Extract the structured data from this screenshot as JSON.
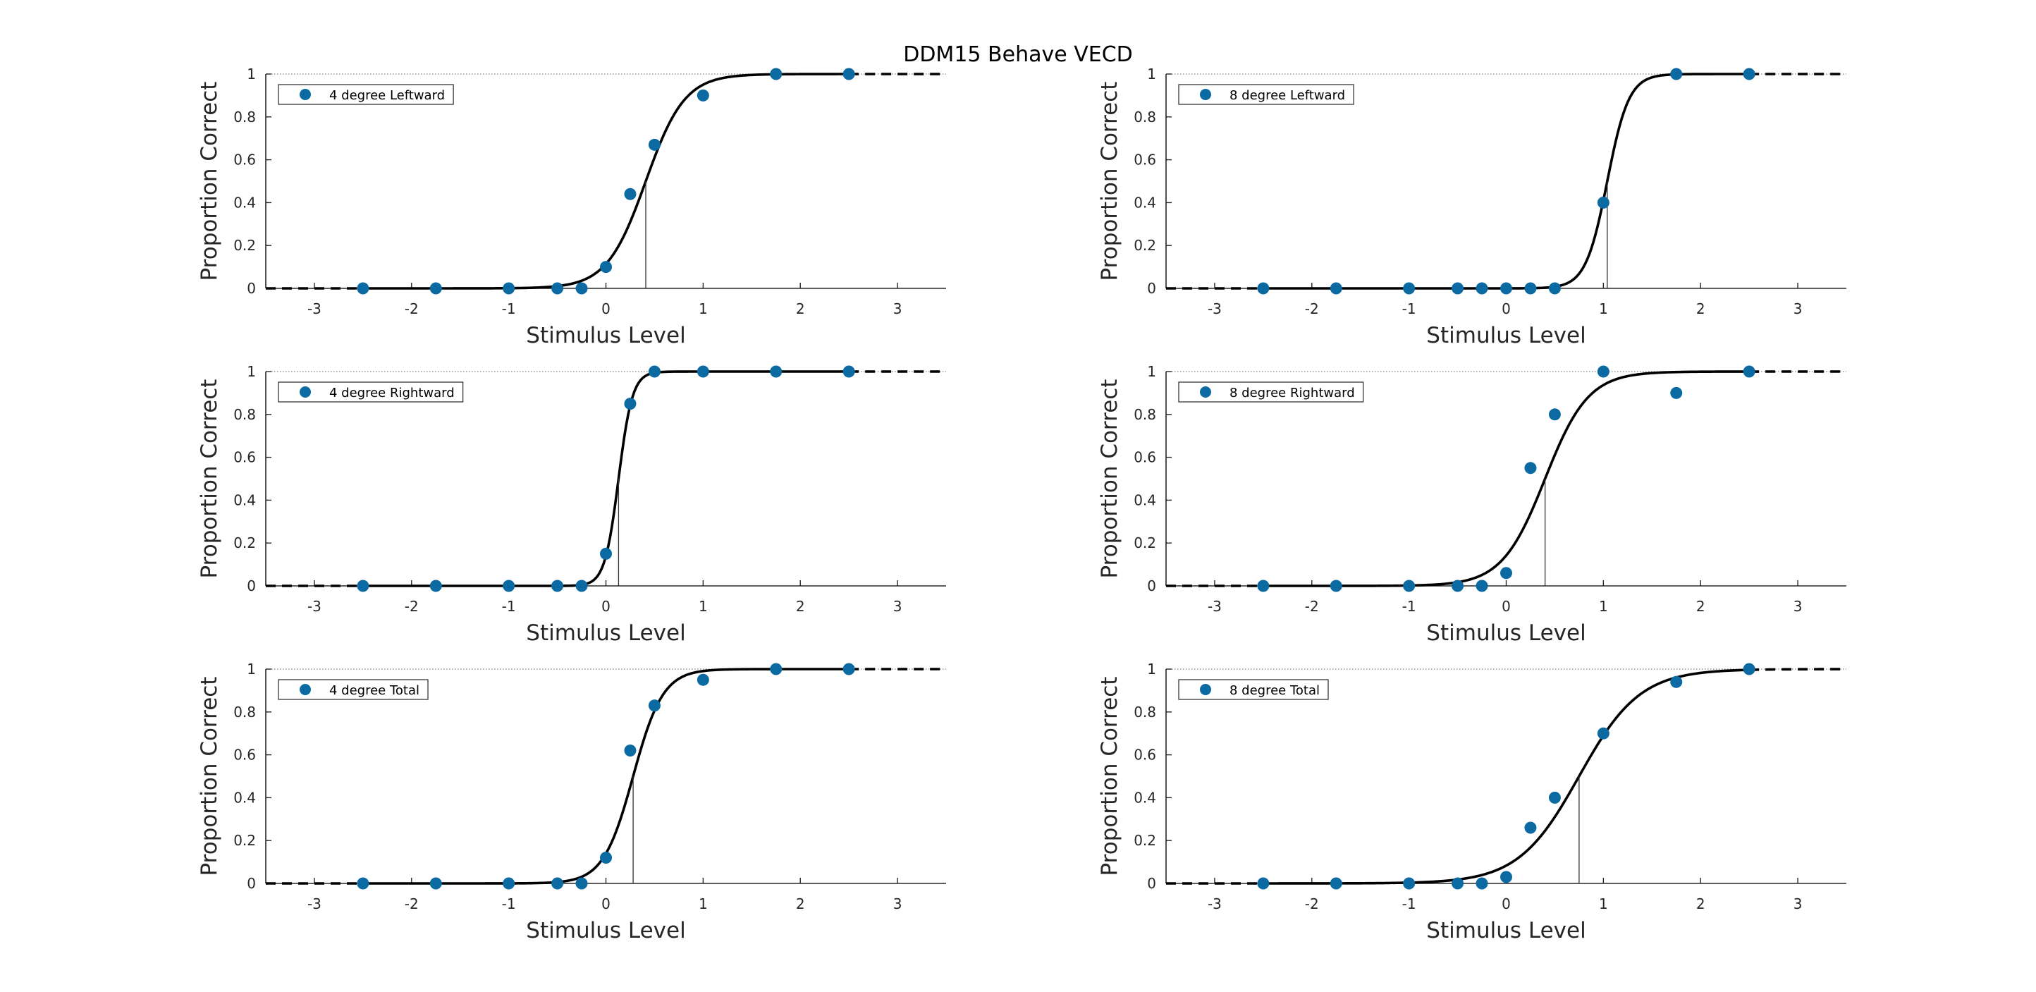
{
  "figure": {
    "title": "DDM15 Behave VECD"
  },
  "style": {
    "marker_color": "#0b6aa1",
    "curve_color": "#000000",
    "axis_color": "#262626"
  },
  "chart_data": [
    {
      "type": "scatter",
      "legend": "4 degree Leftward",
      "legend_position": "top-left",
      "xlabel": "Stimulus Level",
      "ylabel": "Proportion Correct",
      "xlim": [
        -3.5,
        3.5
      ],
      "ylim": [
        0,
        1
      ],
      "xticks": [
        -3,
        -2,
        -1,
        0,
        1,
        2,
        3
      ],
      "yticks": [
        0,
        0.2,
        0.4,
        0.6,
        0.8,
        1
      ],
      "points": {
        "x": [
          -2.5,
          -1.75,
          -1,
          -0.5,
          -0.25,
          0,
          0.25,
          0.5,
          1,
          1.75,
          2.5
        ],
        "y": [
          0,
          0,
          0,
          0,
          0,
          0.1,
          0.44,
          0.67,
          0.9,
          1,
          1
        ]
      },
      "fit": {
        "threshold": 0.41,
        "slope": 5.0
      }
    },
    {
      "type": "scatter",
      "legend": "8 degree Leftward",
      "legend_position": "top-left",
      "xlabel": "Stimulus Level",
      "ylabel": "Proportion Correct",
      "xlim": [
        -3.5,
        3.5
      ],
      "ylim": [
        0,
        1
      ],
      "xticks": [
        -3,
        -2,
        -1,
        0,
        1,
        2,
        3
      ],
      "yticks": [
        0,
        0.2,
        0.4,
        0.6,
        0.8,
        1
      ],
      "points": {
        "x": [
          -2.5,
          -1.75,
          -1,
          -0.5,
          -0.25,
          0,
          0.25,
          0.5,
          1,
          1.75,
          2.5
        ],
        "y": [
          0,
          0,
          0,
          0,
          0,
          0,
          0,
          0,
          0.4,
          1,
          1
        ]
      },
      "fit": {
        "threshold": 1.04,
        "slope": 9.0
      }
    },
    {
      "type": "scatter",
      "legend": "4 degree Rightward",
      "legend_position": "top-left",
      "xlabel": "Stimulus Level",
      "ylabel": "Proportion Correct",
      "xlim": [
        -3.5,
        3.5
      ],
      "ylim": [
        0,
        1
      ],
      "xticks": [
        -3,
        -2,
        -1,
        0,
        1,
        2,
        3
      ],
      "yticks": [
        0,
        0.2,
        0.4,
        0.6,
        0.8,
        1
      ],
      "points": {
        "x": [
          -2.5,
          -1.75,
          -1,
          -0.5,
          -0.25,
          0,
          0.25,
          0.5,
          1,
          1.75,
          2.5
        ],
        "y": [
          0,
          0,
          0,
          0,
          0,
          0.15,
          0.85,
          1,
          1,
          1,
          1
        ]
      },
      "fit": {
        "threshold": 0.13,
        "slope": 14.0
      }
    },
    {
      "type": "scatter",
      "legend": "8 degree Rightward",
      "legend_position": "top-left",
      "xlabel": "Stimulus Level",
      "ylabel": "Proportion Correct",
      "xlim": [
        -3.5,
        3.5
      ],
      "ylim": [
        0,
        1
      ],
      "xticks": [
        -3,
        -2,
        -1,
        0,
        1,
        2,
        3
      ],
      "yticks": [
        0,
        0.2,
        0.4,
        0.6,
        0.8,
        1
      ],
      "points": {
        "x": [
          -2.5,
          -1.75,
          -1,
          -0.5,
          -0.25,
          0,
          0.25,
          0.5,
          1,
          1.75,
          2.5
        ],
        "y": [
          0,
          0,
          0,
          0,
          0,
          0.06,
          0.55,
          0.8,
          1,
          0.9,
          1
        ]
      },
      "fit": {
        "threshold": 0.4,
        "slope": 4.5
      }
    },
    {
      "type": "scatter",
      "legend": "4 degree Total",
      "legend_position": "top-left",
      "xlabel": "Stimulus Level",
      "ylabel": "Proportion Correct",
      "xlim": [
        -3.5,
        3.5
      ],
      "ylim": [
        0,
        1
      ],
      "xticks": [
        -3,
        -2,
        -1,
        0,
        1,
        2,
        3
      ],
      "yticks": [
        0,
        0.2,
        0.4,
        0.6,
        0.8,
        1
      ],
      "points": {
        "x": [
          -2.5,
          -1.75,
          -1,
          -0.5,
          -0.25,
          0,
          0.25,
          0.5,
          1,
          1.75,
          2.5
        ],
        "y": [
          0,
          0,
          0,
          0,
          0,
          0.12,
          0.62,
          0.83,
          0.95,
          1,
          1
        ]
      },
      "fit": {
        "threshold": 0.28,
        "slope": 6.5
      }
    },
    {
      "type": "scatter",
      "legend": "8 degree Total",
      "legend_position": "top-left",
      "xlabel": "Stimulus Level",
      "ylabel": "Proportion Correct",
      "xlim": [
        -3.5,
        3.5
      ],
      "ylim": [
        0,
        1
      ],
      "xticks": [
        -3,
        -2,
        -1,
        0,
        1,
        2,
        3
      ],
      "yticks": [
        0,
        0.2,
        0.4,
        0.6,
        0.8,
        1
      ],
      "points": {
        "x": [
          -2.5,
          -1.75,
          -1,
          -0.5,
          -0.25,
          0,
          0.25,
          0.5,
          1,
          1.75,
          2.5
        ],
        "y": [
          0,
          0,
          0,
          0,
          0,
          0.03,
          0.26,
          0.4,
          0.7,
          0.94,
          1
        ]
      },
      "fit": {
        "threshold": 0.75,
        "slope": 3.2
      }
    }
  ]
}
